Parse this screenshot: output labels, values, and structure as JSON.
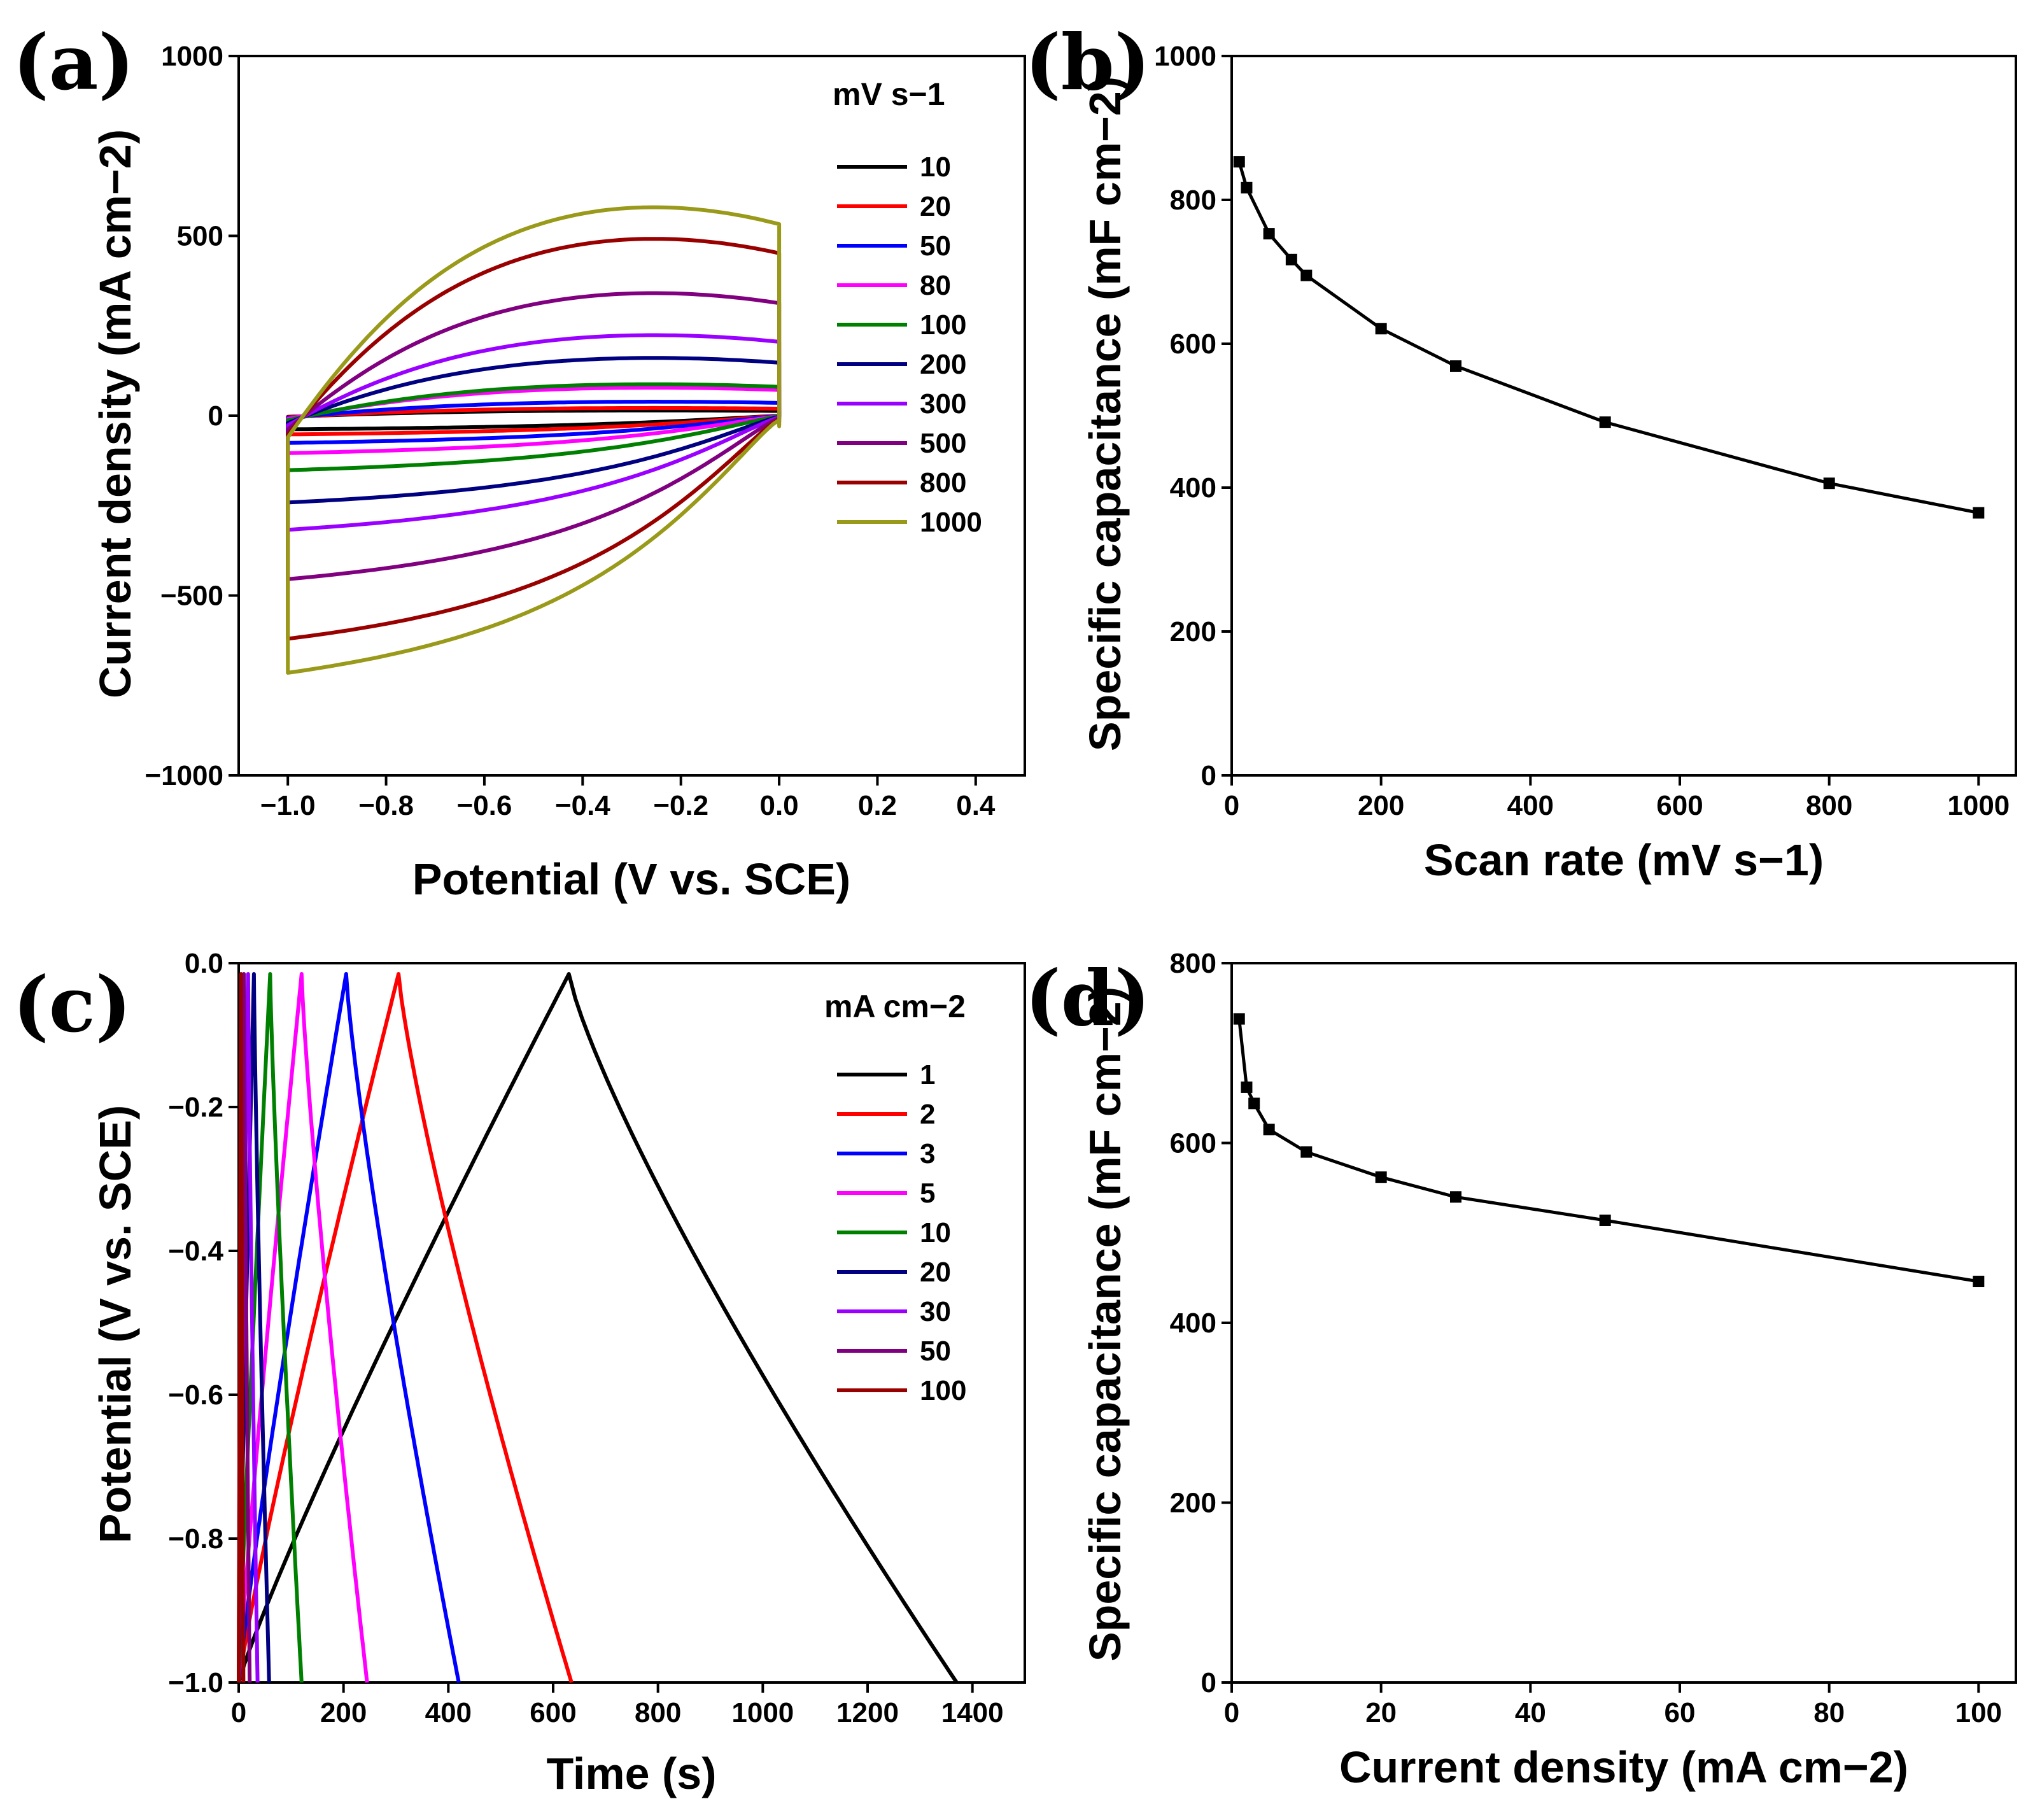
{
  "chart_data": [
    {
      "id": "a",
      "panel_label": "(a)",
      "type": "line",
      "xlabel": "Potential (V vs. SCE)",
      "ylabel": "Current density (mA cm−2)",
      "xlim": [
        -1.1,
        0.5
      ],
      "ylim": [
        -1000,
        1000
      ],
      "xticks": [
        -1.0,
        -0.8,
        -0.6,
        -0.4,
        -0.2,
        0.0,
        0.2,
        0.4
      ],
      "xtick_labels": [
        "−1.0",
        "−0.8",
        "−0.6",
        "−0.4",
        "−0.2",
        "0.0",
        "0.2",
        "0.4"
      ],
      "yticks": [
        -1000,
        -500,
        0,
        500,
        1000
      ],
      "ytick_labels": [
        "−1000",
        "−500",
        "0",
        "500",
        "1000"
      ],
      "legend_title": "mV s−1",
      "legend_position": "top-right",
      "series": [
        {
          "name": "10",
          "color": "#000000",
          "upper_peak": 15,
          "lower_min": -40
        },
        {
          "name": "20",
          "color": "#ff0000",
          "upper_peak": 22,
          "lower_min": -55
        },
        {
          "name": "50",
          "color": "#0000ff",
          "upper_peak": 40,
          "lower_min": -80
        },
        {
          "name": "80",
          "color": "#ff00ff",
          "upper_peak": 80,
          "lower_min": -110
        },
        {
          "name": "100",
          "color": "#008000",
          "upper_peak": 90,
          "lower_min": -160
        },
        {
          "name": "200",
          "color": "#000080",
          "upper_peak": 165,
          "lower_min": -255
        },
        {
          "name": "300",
          "color": "#9900ff",
          "upper_peak": 230,
          "lower_min": -335
        },
        {
          "name": "500",
          "color": "#800080",
          "upper_peak": 350,
          "lower_min": -480
        },
        {
          "name": "800",
          "color": "#990000",
          "upper_peak": 505,
          "lower_min": -655
        },
        {
          "name": "1000",
          "color": "#99991a",
          "upper_peak": 595,
          "lower_min": -755
        }
      ]
    },
    {
      "id": "b",
      "panel_label": "(b)",
      "type": "line",
      "xlabel": "Scan rate (mV s−1)",
      "ylabel": "Specific capacitance (mF cm−2)",
      "xlim": [
        0,
        1050
      ],
      "ylim": [
        0,
        1000
      ],
      "xticks": [
        0,
        200,
        400,
        600,
        800,
        1000
      ],
      "xtick_labels": [
        "0",
        "200",
        "400",
        "600",
        "800",
        "1000"
      ],
      "yticks": [
        0,
        200,
        400,
        600,
        800,
        1000
      ],
      "ytick_labels": [
        "0",
        "200",
        "400",
        "600",
        "800",
        "1000"
      ],
      "x": [
        10,
        20,
        50,
        80,
        100,
        200,
        300,
        500,
        800,
        1000
      ],
      "y": [
        853,
        817,
        753,
        717,
        695,
        621,
        569,
        491,
        406,
        365
      ]
    },
    {
      "id": "c",
      "panel_label": "(c)",
      "type": "line",
      "xlabel": "Time (s)",
      "ylabel": "Potential (V vs. SCE)",
      "xlim": [
        0,
        1500
      ],
      "ylim": [
        -1.0,
        0.0
      ],
      "xticks": [
        0,
        200,
        400,
        600,
        800,
        1000,
        1200,
        1400
      ],
      "xtick_labels": [
        "0",
        "200",
        "400",
        "600",
        "800",
        "1000",
        "1200",
        "1400"
      ],
      "yticks": [
        -1.0,
        -0.8,
        -0.6,
        -0.4,
        -0.2,
        0.0
      ],
      "ytick_labels": [
        "−1.0",
        "−0.8",
        "−0.6",
        "−0.4",
        "−0.2",
        "0.0"
      ],
      "legend_title": "mA cm−2",
      "legend_position": "top-right",
      "series": [
        {
          "name": "1",
          "color": "#000000",
          "t_charge_end": 630,
          "t_end": 1370
        },
        {
          "name": "2",
          "color": "#ff0000",
          "t_charge_end": 305,
          "t_end": 635
        },
        {
          "name": "3",
          "color": "#0000ff",
          "t_charge_end": 205,
          "t_end": 420
        },
        {
          "name": "5",
          "color": "#ff00ff",
          "t_charge_end": 120,
          "t_end": 245
        },
        {
          "name": "10",
          "color": "#008000",
          "t_charge_end": 60,
          "t_end": 120
        },
        {
          "name": "20",
          "color": "#000080",
          "t_charge_end": 29,
          "t_end": 58
        },
        {
          "name": "30",
          "color": "#9900ff",
          "t_charge_end": 18,
          "t_end": 36
        },
        {
          "name": "50",
          "color": "#800080",
          "t_charge_end": 10,
          "t_end": 21
        },
        {
          "name": "100",
          "color": "#990000",
          "t_charge_end": 4.5,
          "t_end": 9
        }
      ]
    },
    {
      "id": "d",
      "panel_label": "(d)",
      "type": "line",
      "xlabel": "Current density (mA cm−2)",
      "ylabel": "Specific capacitance (mF cm−2)",
      "xlim": [
        0,
        105
      ],
      "ylim": [
        0,
        800
      ],
      "xticks": [
        0,
        20,
        40,
        60,
        80,
        100
      ],
      "xtick_labels": [
        "0",
        "20",
        "40",
        "60",
        "80",
        "100"
      ],
      "yticks": [
        0,
        200,
        400,
        600,
        800
      ],
      "ytick_labels": [
        "0",
        "200",
        "400",
        "600",
        "800"
      ],
      "x": [
        1,
        2,
        3,
        5,
        10,
        20,
        30,
        50,
        100
      ],
      "y": [
        738,
        662,
        644,
        615,
        590,
        562,
        540,
        514,
        446
      ]
    }
  ]
}
